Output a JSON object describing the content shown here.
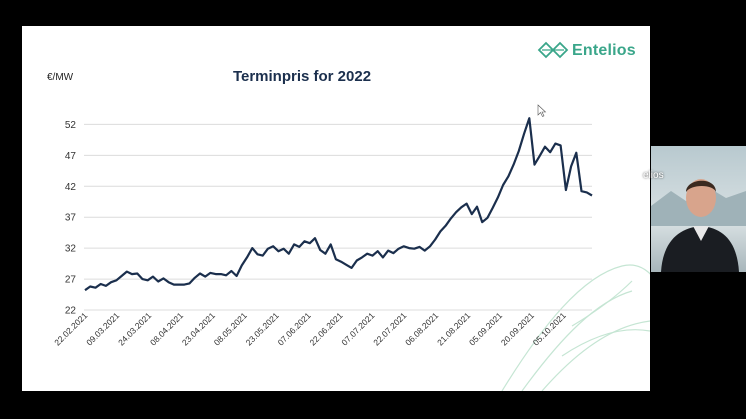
{
  "brand": {
    "name": "Entelios",
    "color": "#3aa68a",
    "icon": "entelios-logo-icon"
  },
  "slide": {
    "background": "#ffffff"
  },
  "webcam": {
    "overlay_text": "elios"
  },
  "chart_data": {
    "type": "line",
    "title": "Terminpris for 2022",
    "ylabel": "€/MW",
    "xlabel": "",
    "ylim": [
      22,
      54
    ],
    "yticks": [
      22,
      27,
      32,
      37,
      42,
      47,
      52
    ],
    "grid": true,
    "line_color": "#1b2f4d",
    "xtick_labels": [
      "22.02.2021",
      "09.03.2021",
      "24.03.2021",
      "08.04.2021",
      "23.04.2021",
      "08.05.2021",
      "23.05.2021",
      "07.06.2021",
      "22.06.2021",
      "07.07.2021",
      "22.07.2021",
      "06.08.2021",
      "21.08.2021",
      "05.09.2021",
      "20.09.2021",
      "05.10.2021"
    ],
    "series": [
      {
        "values": [
          25.2,
          25.8,
          25.6,
          26.2,
          25.9,
          26.5,
          26.8,
          27.5,
          28.2,
          27.8,
          27.9,
          27.0,
          26.8,
          27.4,
          26.6,
          27.1,
          26.5,
          26.1,
          26.1,
          26.1,
          26.3,
          27.2,
          27.9,
          27.4,
          28.0,
          27.8,
          27.8,
          27.6,
          28.3,
          27.5,
          29.2,
          30.5,
          32.0,
          31.0,
          30.8,
          31.9,
          32.3,
          31.5,
          31.9,
          31.1,
          32.6,
          32.2,
          33.1,
          32.8,
          33.6,
          31.7,
          31.1,
          32.6,
          30.2,
          29.8,
          29.3,
          28.8,
          30.0,
          30.5,
          31.1,
          30.8,
          31.5,
          30.5,
          31.6,
          31.2,
          31.9,
          32.3,
          32.0,
          31.9,
          32.2,
          31.6,
          32.3,
          33.4,
          34.7,
          35.6,
          36.8,
          37.8,
          38.6,
          39.2,
          37.5,
          38.7,
          36.2,
          36.9,
          38.5,
          40.2,
          42.2,
          43.6,
          45.5,
          47.7,
          50.5,
          53.0,
          45.5,
          46.9,
          48.4,
          47.5,
          48.9,
          48.6,
          41.4,
          45.2,
          47.4,
          41.2,
          41.0,
          40.5
        ]
      }
    ]
  }
}
